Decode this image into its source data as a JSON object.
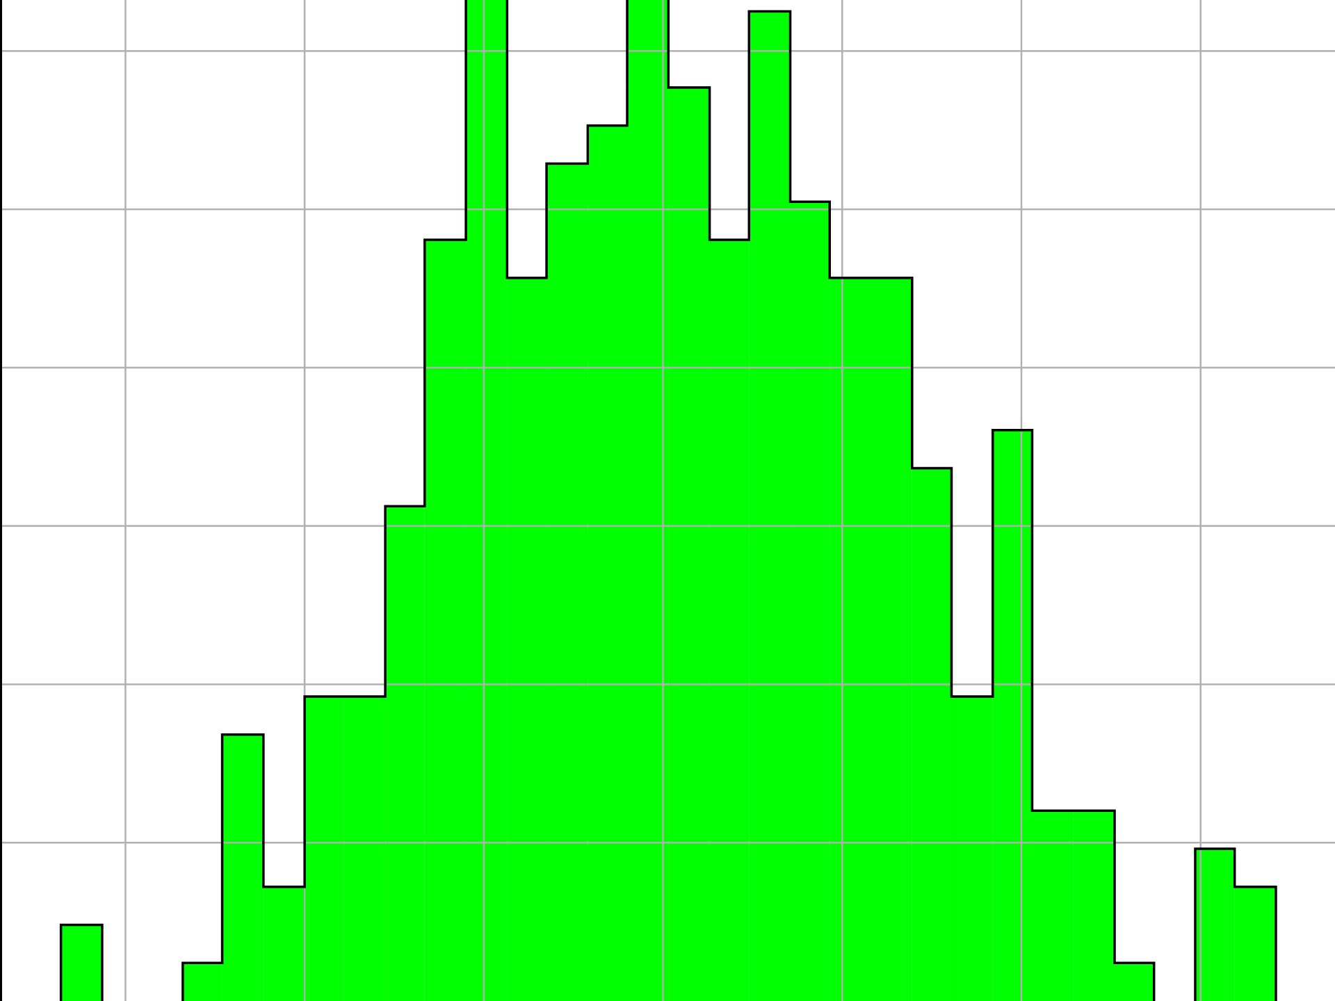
{
  "chart_data": {
    "type": "histogram",
    "bins": [
      -3.36,
      -3.13,
      -2.91,
      -2.68,
      -2.46,
      -2.23,
      -2.0,
      -1.78,
      -1.55,
      -1.33,
      -1.1,
      -0.87,
      -0.65,
      -0.42,
      -0.2,
      0.03,
      0.26,
      0.48,
      0.71,
      0.93,
      1.16,
      1.39,
      1.61,
      1.84,
      2.06,
      2.29,
      2.52,
      2.74,
      2.97,
      3.19,
      3.42
    ],
    "values": [
      2,
      0,
      0,
      1,
      7,
      3,
      8,
      8,
      13,
      20,
      27,
      19,
      22,
      23,
      28,
      24,
      20,
      26,
      21,
      19,
      19,
      14,
      8,
      15,
      5,
      5,
      1,
      0,
      4,
      3
    ],
    "color": "#00ff00",
    "edgecolor": "#000000",
    "xlim": [
      -3.7,
      3.75
    ],
    "xticks": [
      -3,
      -2,
      -1,
      0,
      1,
      2,
      3
    ],
    "ylim": [
      0,
      26.3
    ],
    "yticks": [
      4.16,
      8.32,
      12.48,
      16.64,
      20.8,
      24.96
    ],
    "grid": true
  }
}
